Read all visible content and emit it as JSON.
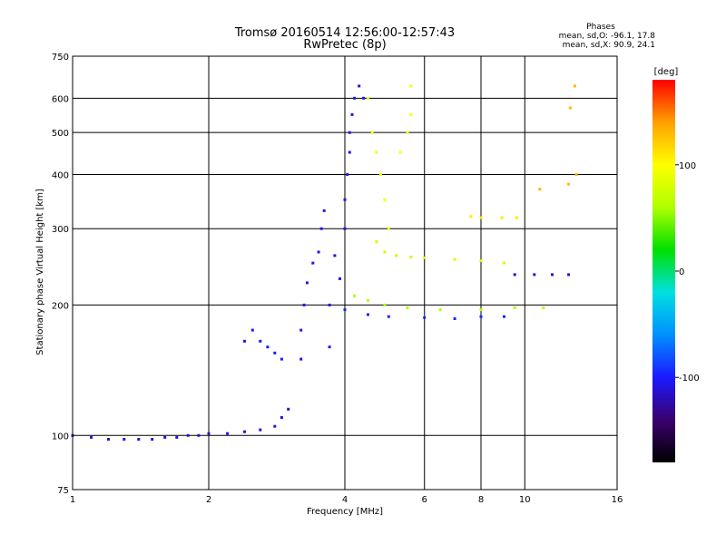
{
  "chart_data": {
    "type": "scatter",
    "title": "Tromsø 20160514 12:56:00-12:57:43",
    "subtitle": "RwPretec (8p)",
    "xlabel": "Frequency [MHz]",
    "ylabel": "Stationary phase Virtual Height [km]",
    "x_scale": "log",
    "y_scale": "log",
    "xlim": [
      1,
      16
    ],
    "ylim": [
      75,
      750
    ],
    "x_ticks": [
      1,
      2,
      4,
      6,
      8,
      10,
      16
    ],
    "x_tick_labels": [
      "1",
      "2",
      "4",
      "6",
      "8",
      "10",
      "16"
    ],
    "y_ticks": [
      75,
      100,
      200,
      300,
      400,
      500,
      600,
      750
    ],
    "y_tick_labels": [
      "75",
      "100",
      "200",
      "300",
      "400",
      "500",
      "600",
      "750"
    ],
    "grid": true,
    "stats": {
      "heading": "Phases",
      "o_mode": "mean, sd,O: -96.1, 17.8",
      "x_mode": "mean, sd,X:  90.9, 24.1"
    },
    "colorbar": {
      "label": "[deg]",
      "range": [
        -180,
        180
      ],
      "ticks": [
        100,
        0,
        -100
      ],
      "tick_labels": [
        "100",
        "0",
        "-100"
      ],
      "palette": [
        "#000000",
        "#3b006e",
        "#1a1aff",
        "#0090ff",
        "#00e0e0",
        "#00e000",
        "#b0ff00",
        "#ffff00",
        "#ffa000",
        "#ff0000"
      ]
    },
    "traces": [
      {
        "phase": -110,
        "points": [
          [
            1.0,
            100
          ],
          [
            1.1,
            99
          ],
          [
            1.2,
            98
          ],
          [
            1.3,
            98
          ],
          [
            1.4,
            98
          ],
          [
            1.5,
            98
          ],
          [
            1.6,
            99
          ],
          [
            1.7,
            99
          ],
          [
            1.8,
            100
          ],
          [
            1.9,
            100
          ],
          [
            2.0,
            101
          ],
          [
            2.2,
            101
          ],
          [
            2.4,
            102
          ],
          [
            2.6,
            103
          ],
          [
            2.8,
            105
          ],
          [
            2.9,
            110
          ],
          [
            3.0,
            115
          ]
        ]
      },
      {
        "phase": -100,
        "points": [
          [
            2.4,
            165
          ],
          [
            2.5,
            175
          ],
          [
            2.6,
            165
          ],
          [
            2.7,
            160
          ],
          [
            2.8,
            155
          ],
          [
            2.9,
            150
          ]
        ]
      },
      {
        "phase": -105,
        "points": [
          [
            3.2,
            150
          ],
          [
            3.2,
            175
          ],
          [
            3.25,
            200
          ],
          [
            3.3,
            225
          ],
          [
            3.4,
            250
          ],
          [
            3.5,
            265
          ],
          [
            3.55,
            300
          ],
          [
            3.6,
            330
          ],
          [
            3.7,
            200
          ],
          [
            3.7,
            160
          ],
          [
            3.8,
            260
          ],
          [
            3.9,
            230
          ],
          [
            4.0,
            300
          ],
          [
            4.0,
            350
          ],
          [
            4.05,
            400
          ],
          [
            4.1,
            450
          ],
          [
            4.1,
            500
          ],
          [
            4.15,
            550
          ],
          [
            4.2,
            600
          ],
          [
            4.3,
            640
          ],
          [
            4.4,
            600
          ]
        ]
      },
      {
        "phase": 95,
        "points": [
          [
            4.5,
            600
          ],
          [
            4.6,
            500
          ],
          [
            4.7,
            450
          ],
          [
            4.8,
            400
          ],
          [
            4.9,
            350
          ],
          [
            5.0,
            300
          ],
          [
            5.3,
            450
          ],
          [
            5.5,
            500
          ],
          [
            5.6,
            550
          ],
          [
            5.6,
            640
          ]
        ]
      },
      {
        "phase": 75,
        "points": [
          [
            4.7,
            280
          ],
          [
            4.9,
            265
          ],
          [
            5.2,
            260
          ],
          [
            5.6,
            258
          ],
          [
            6.0,
            257
          ],
          [
            7.0,
            255
          ],
          [
            8.0,
            253
          ],
          [
            9.0,
            250
          ]
        ]
      },
      {
        "phase": 60,
        "points": [
          [
            4.2,
            210
          ],
          [
            4.5,
            205
          ],
          [
            4.9,
            200
          ],
          [
            5.5,
            197
          ],
          [
            6.5,
            195
          ],
          [
            8.0,
            195
          ],
          [
            9.5,
            197
          ],
          [
            11.0,
            197
          ]
        ]
      },
      {
        "phase": -95,
        "points": [
          [
            4.0,
            195
          ],
          [
            4.5,
            190
          ],
          [
            5.0,
            188
          ],
          [
            6.0,
            187
          ],
          [
            7.0,
            186
          ],
          [
            8.0,
            188
          ],
          [
            9.0,
            188
          ]
        ]
      },
      {
        "phase": -110,
        "points": [
          [
            9.5,
            235
          ],
          [
            10.5,
            235
          ],
          [
            11.5,
            235
          ],
          [
            12.5,
            235
          ]
        ]
      },
      {
        "phase": 110,
        "points": [
          [
            7.6,
            320
          ],
          [
            8.0,
            318
          ],
          [
            8.9,
            318
          ],
          [
            9.6,
            318
          ]
        ]
      },
      {
        "phase": 130,
        "points": [
          [
            10.8,
            370
          ],
          [
            12.5,
            380
          ],
          [
            13.0,
            400
          ],
          [
            12.6,
            570
          ],
          [
            12.9,
            640
          ]
        ]
      }
    ]
  }
}
